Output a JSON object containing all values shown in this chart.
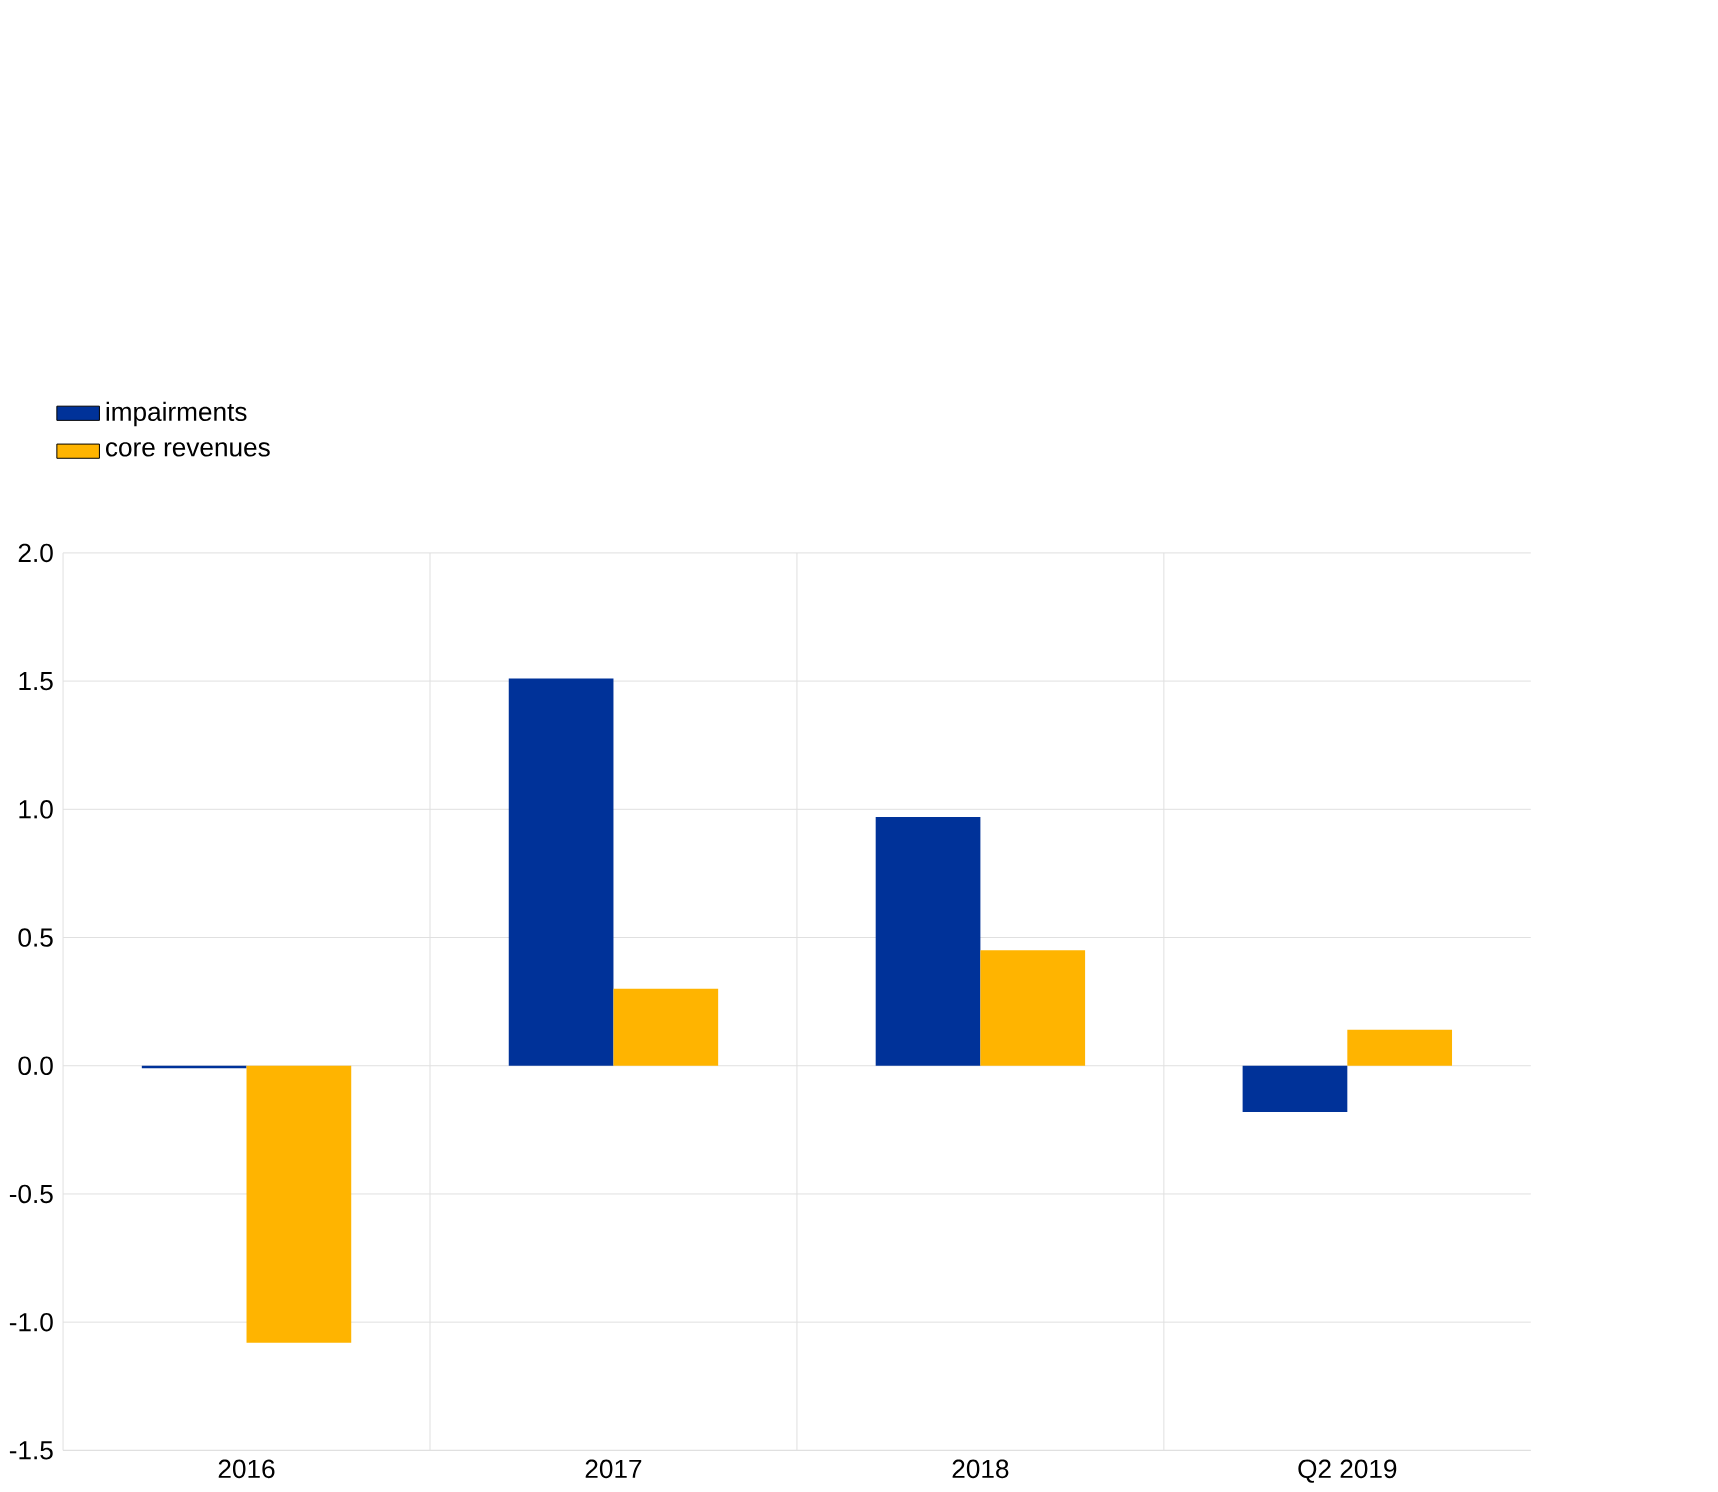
{
  "chart_data": {
    "type": "bar",
    "categories": [
      "2016",
      "2017",
      "2018",
      "Q2 2019"
    ],
    "series": [
      {
        "name": "impairments",
        "color": "#003299",
        "values": [
          -0.01,
          1.51,
          0.97,
          -0.18
        ]
      },
      {
        "name": "core revenues",
        "color": "#ffb400",
        "values": [
          -1.08,
          0.3,
          0.45,
          0.14
        ]
      }
    ],
    "ylim": [
      -1.5,
      2.0
    ],
    "yticks": [
      {
        "value": -1.5,
        "label": "-1.5"
      },
      {
        "value": -1.0,
        "label": "-1.0"
      },
      {
        "value": -0.5,
        "label": "-0.5"
      },
      {
        "value": 0.0,
        "label": "0.0"
      },
      {
        "value": 0.5,
        "label": "0.5"
      },
      {
        "value": 1.0,
        "label": "1.0"
      },
      {
        "value": 1.5,
        "label": "1.5"
      },
      {
        "value": 2.0,
        "label": "2.0"
      }
    ],
    "grid": true,
    "legend": "top left"
  }
}
